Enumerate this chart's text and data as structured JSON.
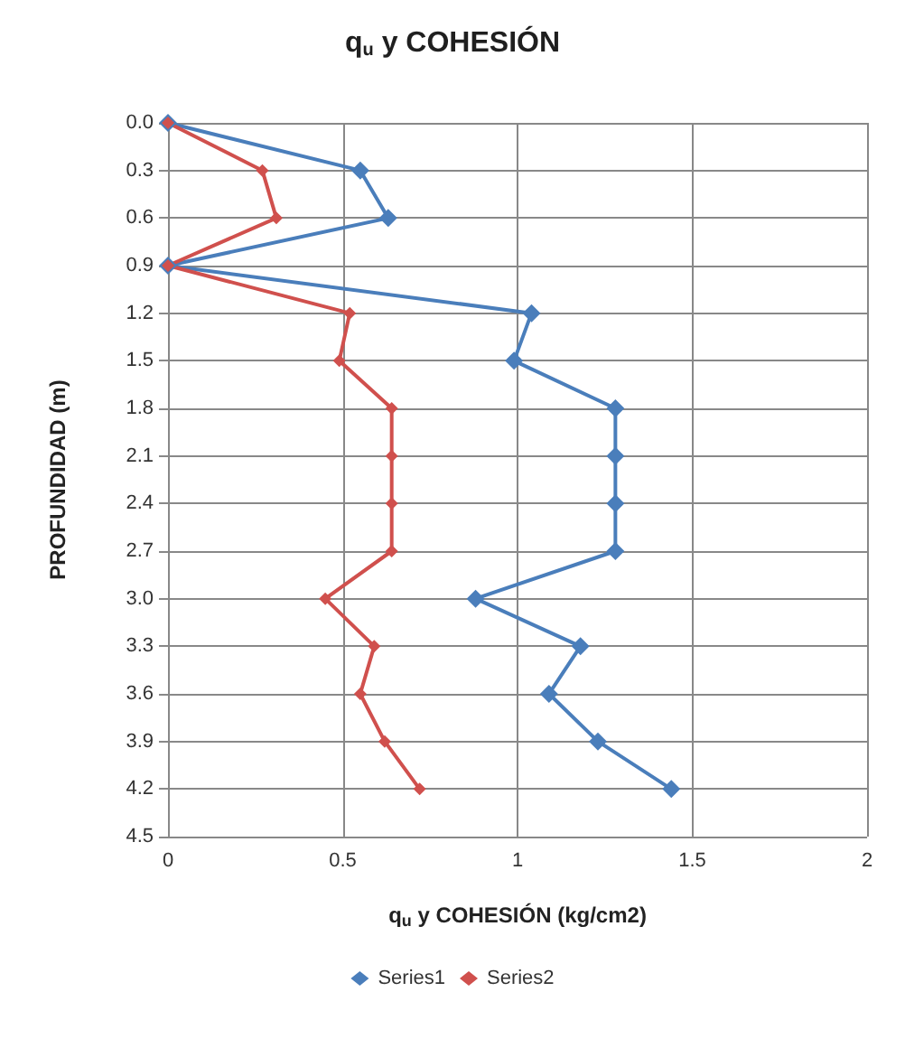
{
  "chart_data": {
    "type": "line",
    "title": "q$_{u}$ y COHESIÓN",
    "xlabel": "q$_{u}$ y COHESIÓN (kg/cm2)",
    "ylabel": "PROFUNDIDAD (m)",
    "series": [
      {
        "name": "Series1",
        "color": "#4a7ebb",
        "x": [
          0,
          0.55,
          0.63,
          0,
          1.04,
          0.99,
          1.28,
          1.28,
          1.28,
          1.28,
          0.88,
          1.18,
          1.09,
          1.23,
          1.44
        ],
        "values": [
          0,
          0.3,
          0.6,
          0.9,
          1.2,
          1.5,
          1.8,
          2.1,
          2.4,
          2.7,
          3.0,
          3.3,
          3.6,
          3.9,
          4.2
        ]
      },
      {
        "name": "Series2",
        "color": "#d0504d",
        "x": [
          0,
          0.27,
          0.31,
          0,
          0.52,
          0.49,
          0.64,
          0.64,
          0.64,
          0.64,
          0.45,
          0.59,
          0.55,
          0.62,
          0.72
        ],
        "values": [
          0,
          0.3,
          0.6,
          0.9,
          1.2,
          1.5,
          1.8,
          2.1,
          2.4,
          2.7,
          3.0,
          3.3,
          3.6,
          3.9,
          4.2
        ]
      }
    ],
    "xlim": [
      0,
      2
    ],
    "xticks": [
      0,
      0.5,
      1,
      1.5,
      2
    ],
    "ylim": [
      4.5,
      0
    ],
    "yticks": [
      {
        "value": 0,
        "label": "0.0"
      },
      {
        "value": 0.3,
        "label": "0.3"
      },
      {
        "value": 0.6,
        "label": "0.6"
      },
      {
        "value": 0.9,
        "label": "0.9"
      },
      {
        "value": 1.2,
        "label": "1.2"
      },
      {
        "value": 1.5,
        "label": "1.5"
      },
      {
        "value": 1.8,
        "label": "1.8"
      },
      {
        "value": 2.1,
        "label": "2.1"
      },
      {
        "value": 2.4,
        "label": "2.4"
      },
      {
        "value": 2.7,
        "label": "2.7"
      },
      {
        "value": 3.0,
        "label": "3.0"
      },
      {
        "value": 3.3,
        "label": "3.3"
      },
      {
        "value": 3.6,
        "label": "3.6"
      },
      {
        "value": 3.9,
        "label": "3.9"
      },
      {
        "value": 4.2,
        "label": "4.2"
      },
      {
        "value": 4.5,
        "label": "4.5"
      }
    ],
    "grid": true,
    "legend": "bottom",
    "marker": "diamond",
    "line_style": "solid"
  }
}
